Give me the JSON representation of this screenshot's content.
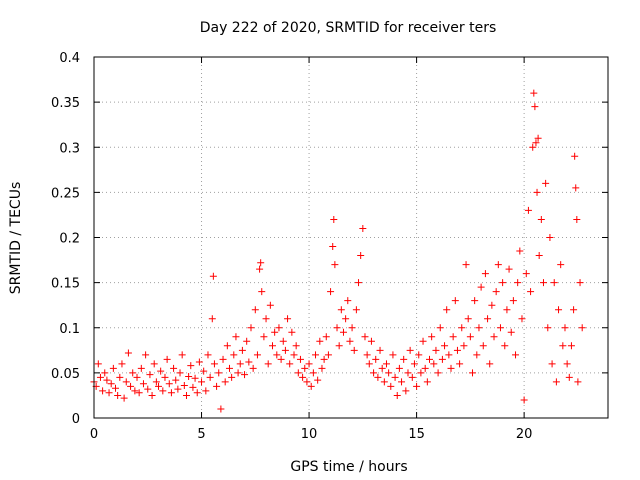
{
  "chart_data": {
    "type": "scatter",
    "title": "Day 222 of 2020, SRMTID for receiver ters",
    "xlabel": "GPS time / hours",
    "ylabel": "SRMTID / TECUs",
    "xlim": [
      0,
      23.9
    ],
    "ylim": [
      0,
      0.4
    ],
    "x_ticks": [
      0,
      5,
      10,
      15,
      20
    ],
    "x_tick_labels": [
      "0",
      "5",
      "10",
      "15",
      "20"
    ],
    "y_ticks": [
      0,
      0.05,
      0.1,
      0.15,
      0.2,
      0.25,
      0.3,
      0.35,
      0.4
    ],
    "y_tick_labels": [
      "0",
      "0.05",
      "0.1",
      "0.15",
      "0.2",
      "0.25",
      "0.3",
      "0.35",
      "0.4"
    ],
    "grid": true,
    "marker": "plus",
    "series_color": "#ff0000",
    "series": [
      {
        "name": "SRMTID",
        "points": [
          [
            0.0,
            0.04
          ],
          [
            0.1,
            0.035
          ],
          [
            0.2,
            0.06
          ],
          [
            0.3,
            0.045
          ],
          [
            0.4,
            0.03
          ],
          [
            0.5,
            0.05
          ],
          [
            0.6,
            0.042
          ],
          [
            0.7,
            0.028
          ],
          [
            0.8,
            0.038
          ],
          [
            0.9,
            0.055
          ],
          [
            1.0,
            0.033
          ],
          [
            1.1,
            0.025
          ],
          [
            1.2,
            0.045
          ],
          [
            1.3,
            0.06
          ],
          [
            1.4,
            0.022
          ],
          [
            1.5,
            0.04
          ],
          [
            1.6,
            0.072
          ],
          [
            1.7,
            0.035
          ],
          [
            1.8,
            0.05
          ],
          [
            1.9,
            0.03
          ],
          [
            2.0,
            0.045
          ],
          [
            2.1,
            0.028
          ],
          [
            2.2,
            0.055
          ],
          [
            2.3,
            0.038
          ],
          [
            2.4,
            0.07
          ],
          [
            2.5,
            0.032
          ],
          [
            2.6,
            0.048
          ],
          [
            2.7,
            0.025
          ],
          [
            2.8,
            0.06
          ],
          [
            2.9,
            0.04
          ],
          [
            3.0,
            0.035
          ],
          [
            3.1,
            0.052
          ],
          [
            3.2,
            0.03
          ],
          [
            3.3,
            0.045
          ],
          [
            3.4,
            0.065
          ],
          [
            3.5,
            0.038
          ],
          [
            3.6,
            0.028
          ],
          [
            3.7,
            0.055
          ],
          [
            3.8,
            0.042
          ],
          [
            3.9,
            0.032
          ],
          [
            4.0,
            0.05
          ],
          [
            4.1,
            0.07
          ],
          [
            4.2,
            0.036
          ],
          [
            4.3,
            0.025
          ],
          [
            4.4,
            0.046
          ],
          [
            4.5,
            0.058
          ],
          [
            4.6,
            0.034
          ],
          [
            4.7,
            0.044
          ],
          [
            4.8,
            0.028
          ],
          [
            4.9,
            0.062
          ],
          [
            5.0,
            0.04
          ],
          [
            5.1,
            0.052
          ],
          [
            5.2,
            0.03
          ],
          [
            5.3,
            0.07
          ],
          [
            5.4,
            0.045
          ],
          [
            5.5,
            0.11
          ],
          [
            5.55,
            0.157
          ],
          [
            5.6,
            0.06
          ],
          [
            5.7,
            0.035
          ],
          [
            5.8,
            0.05
          ],
          [
            5.9,
            0.01
          ],
          [
            6.0,
            0.065
          ],
          [
            6.1,
            0.04
          ],
          [
            6.2,
            0.08
          ],
          [
            6.3,
            0.055
          ],
          [
            6.4,
            0.045
          ],
          [
            6.5,
            0.07
          ],
          [
            6.6,
            0.09
          ],
          [
            6.7,
            0.05
          ],
          [
            6.8,
            0.06
          ],
          [
            6.9,
            0.075
          ],
          [
            7.0,
            0.048
          ],
          [
            7.1,
            0.085
          ],
          [
            7.2,
            0.062
          ],
          [
            7.3,
            0.1
          ],
          [
            7.4,
            0.055
          ],
          [
            7.5,
            0.12
          ],
          [
            7.6,
            0.07
          ],
          [
            7.7,
            0.165
          ],
          [
            7.75,
            0.172
          ],
          [
            7.8,
            0.14
          ],
          [
            7.9,
            0.09
          ],
          [
            8.0,
            0.11
          ],
          [
            8.1,
            0.06
          ],
          [
            8.2,
            0.125
          ],
          [
            8.3,
            0.08
          ],
          [
            8.4,
            0.095
          ],
          [
            8.5,
            0.07
          ],
          [
            8.6,
            0.1
          ],
          [
            8.7,
            0.065
          ],
          [
            8.8,
            0.085
          ],
          [
            8.9,
            0.075
          ],
          [
            9.0,
            0.11
          ],
          [
            9.1,
            0.06
          ],
          [
            9.2,
            0.095
          ],
          [
            9.3,
            0.07
          ],
          [
            9.4,
            0.08
          ],
          [
            9.5,
            0.05
          ],
          [
            9.6,
            0.065
          ],
          [
            9.7,
            0.045
          ],
          [
            9.8,
            0.055
          ],
          [
            9.9,
            0.04
          ],
          [
            10.0,
            0.06
          ],
          [
            10.1,
            0.035
          ],
          [
            10.2,
            0.05
          ],
          [
            10.3,
            0.07
          ],
          [
            10.4,
            0.042
          ],
          [
            10.5,
            0.085
          ],
          [
            10.6,
            0.055
          ],
          [
            10.7,
            0.065
          ],
          [
            10.8,
            0.09
          ],
          [
            10.9,
            0.07
          ],
          [
            11.0,
            0.14
          ],
          [
            11.1,
            0.19
          ],
          [
            11.15,
            0.22
          ],
          [
            11.2,
            0.17
          ],
          [
            11.3,
            0.1
          ],
          [
            11.4,
            0.08
          ],
          [
            11.5,
            0.12
          ],
          [
            11.6,
            0.095
          ],
          [
            11.7,
            0.11
          ],
          [
            11.8,
            0.13
          ],
          [
            11.9,
            0.085
          ],
          [
            12.0,
            0.1
          ],
          [
            12.1,
            0.075
          ],
          [
            12.2,
            0.12
          ],
          [
            12.3,
            0.15
          ],
          [
            12.4,
            0.18
          ],
          [
            12.5,
            0.21
          ],
          [
            12.6,
            0.09
          ],
          [
            12.7,
            0.07
          ],
          [
            12.8,
            0.06
          ],
          [
            12.9,
            0.085
          ],
          [
            13.0,
            0.05
          ],
          [
            13.1,
            0.065
          ],
          [
            13.2,
            0.045
          ],
          [
            13.3,
            0.075
          ],
          [
            13.4,
            0.055
          ],
          [
            13.5,
            0.04
          ],
          [
            13.6,
            0.06
          ],
          [
            13.7,
            0.05
          ],
          [
            13.8,
            0.035
          ],
          [
            13.9,
            0.07
          ],
          [
            14.0,
            0.045
          ],
          [
            14.1,
            0.025
          ],
          [
            14.2,
            0.055
          ],
          [
            14.3,
            0.04
          ],
          [
            14.4,
            0.065
          ],
          [
            14.5,
            0.03
          ],
          [
            14.6,
            0.05
          ],
          [
            14.7,
            0.075
          ],
          [
            14.8,
            0.045
          ],
          [
            14.9,
            0.06
          ],
          [
            15.0,
            0.035
          ],
          [
            15.1,
            0.07
          ],
          [
            15.2,
            0.05
          ],
          [
            15.3,
            0.085
          ],
          [
            15.4,
            0.055
          ],
          [
            15.5,
            0.04
          ],
          [
            15.6,
            0.065
          ],
          [
            15.7,
            0.09
          ],
          [
            15.8,
            0.06
          ],
          [
            15.9,
            0.075
          ],
          [
            16.0,
            0.05
          ],
          [
            16.1,
            0.1
          ],
          [
            16.2,
            0.065
          ],
          [
            16.3,
            0.08
          ],
          [
            16.4,
            0.12
          ],
          [
            16.5,
            0.07
          ],
          [
            16.6,
            0.055
          ],
          [
            16.7,
            0.09
          ],
          [
            16.8,
            0.13
          ],
          [
            16.9,
            0.075
          ],
          [
            17.0,
            0.06
          ],
          [
            17.1,
            0.1
          ],
          [
            17.2,
            0.08
          ],
          [
            17.3,
            0.17
          ],
          [
            17.4,
            0.11
          ],
          [
            17.5,
            0.09
          ],
          [
            17.6,
            0.05
          ],
          [
            17.7,
            0.13
          ],
          [
            17.8,
            0.07
          ],
          [
            17.9,
            0.1
          ],
          [
            18.0,
            0.145
          ],
          [
            18.1,
            0.08
          ],
          [
            18.2,
            0.16
          ],
          [
            18.3,
            0.11
          ],
          [
            18.4,
            0.06
          ],
          [
            18.5,
            0.125
          ],
          [
            18.6,
            0.09
          ],
          [
            18.7,
            0.14
          ],
          [
            18.8,
            0.17
          ],
          [
            18.9,
            0.1
          ],
          [
            19.0,
            0.15
          ],
          [
            19.1,
            0.08
          ],
          [
            19.2,
            0.12
          ],
          [
            19.3,
            0.165
          ],
          [
            19.4,
            0.095
          ],
          [
            19.5,
            0.13
          ],
          [
            19.6,
            0.07
          ],
          [
            19.7,
            0.15
          ],
          [
            19.8,
            0.185
          ],
          [
            19.9,
            0.11
          ],
          [
            20.0,
            0.02
          ],
          [
            20.1,
            0.16
          ],
          [
            20.2,
            0.23
          ],
          [
            20.3,
            0.14
          ],
          [
            20.4,
            0.3
          ],
          [
            20.45,
            0.36
          ],
          [
            20.5,
            0.345
          ],
          [
            20.55,
            0.305
          ],
          [
            20.6,
            0.25
          ],
          [
            20.65,
            0.31
          ],
          [
            20.7,
            0.18
          ],
          [
            20.8,
            0.22
          ],
          [
            20.9,
            0.15
          ],
          [
            21.0,
            0.26
          ],
          [
            21.1,
            0.1
          ],
          [
            21.2,
            0.2
          ],
          [
            21.3,
            0.06
          ],
          [
            21.4,
            0.15
          ],
          [
            21.5,
            0.04
          ],
          [
            21.6,
            0.12
          ],
          [
            21.7,
            0.17
          ],
          [
            21.8,
            0.08
          ],
          [
            21.9,
            0.1
          ],
          [
            22.0,
            0.06
          ],
          [
            22.1,
            0.045
          ],
          [
            22.2,
            0.08
          ],
          [
            22.3,
            0.12
          ],
          [
            22.35,
            0.29
          ],
          [
            22.4,
            0.255
          ],
          [
            22.45,
            0.22
          ],
          [
            22.5,
            0.04
          ],
          [
            22.6,
            0.15
          ],
          [
            22.7,
            0.1
          ]
        ]
      }
    ]
  }
}
